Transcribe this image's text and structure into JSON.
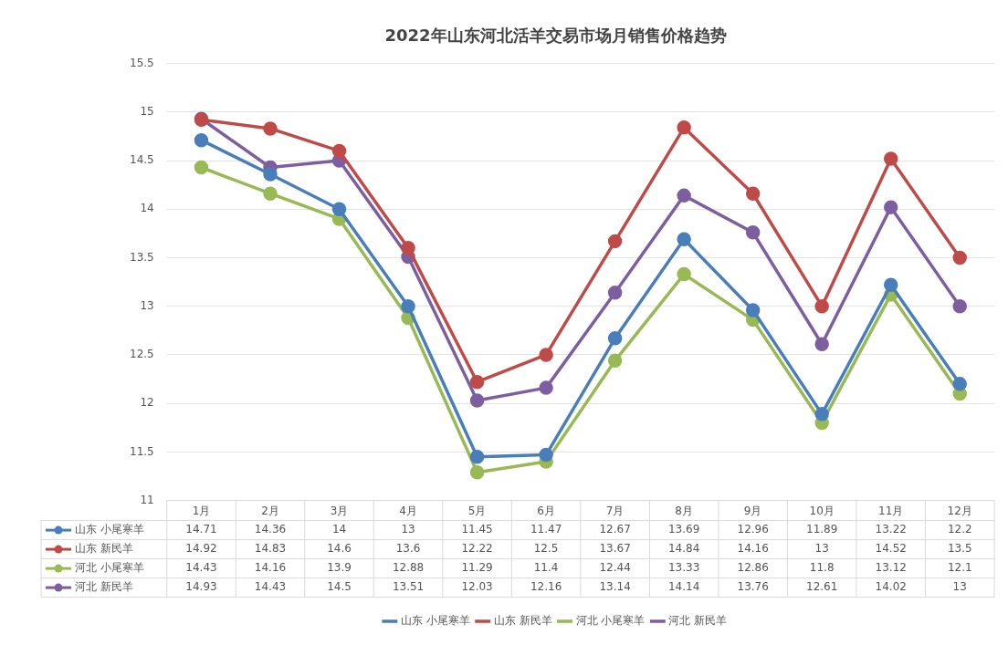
{
  "chart_data": {
    "type": "line",
    "title": "2022年山东河北活羊交易市场月销售价格趋势",
    "categories": [
      "1月",
      "2月",
      "3月",
      "4月",
      "5月",
      "6月",
      "7月",
      "8月",
      "9月",
      "10月",
      "11月",
      "12月"
    ],
    "series": [
      {
        "name": "山东 小尾寒羊",
        "color": "#4a7ebb",
        "values": [
          14.71,
          14.36,
          14,
          13,
          11.45,
          11.47,
          12.67,
          13.69,
          12.96,
          11.89,
          13.22,
          12.2
        ]
      },
      {
        "name": "山东 新民羊",
        "color": "#be4b48",
        "values": [
          14.92,
          14.83,
          14.6,
          13.6,
          12.22,
          12.5,
          13.67,
          14.84,
          14.16,
          13,
          14.52,
          13.5
        ]
      },
      {
        "name": "河北 小尾寒羊",
        "color": "#98b954",
        "values": [
          14.43,
          14.16,
          13.9,
          12.88,
          11.29,
          11.4,
          12.44,
          13.33,
          12.86,
          11.8,
          13.12,
          12.1
        ]
      },
      {
        "name": "河北 新民羊",
        "color": "#7d5fa0",
        "values": [
          14.93,
          14.43,
          14.5,
          13.51,
          12.03,
          12.16,
          13.14,
          14.14,
          13.76,
          12.61,
          14.02,
          13
        ]
      }
    ],
    "ylim": [
      11,
      15.5
    ],
    "yticks": [
      11,
      11.5,
      12,
      12.5,
      13,
      13.5,
      14,
      14.5,
      15,
      15.5
    ],
    "grid": "y",
    "legend": "bottom",
    "marker": "circle",
    "line_style": "solid",
    "data_labels": true
  }
}
